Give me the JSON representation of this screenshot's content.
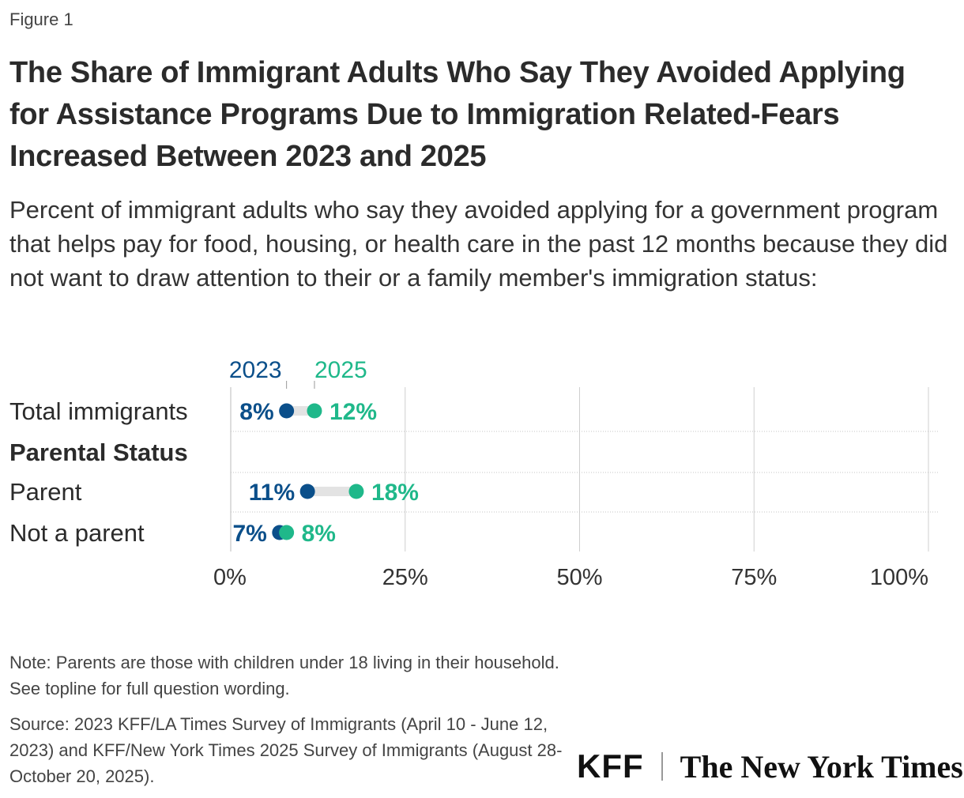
{
  "figure_label": "Figure 1",
  "title": "The Share of Immigrant Adults Who Say They Avoided Applying for Assistance Programs Due to Immigration Related-Fears Increased Between 2023 and 2025",
  "subtitle": "Percent of immigrant adults who say they avoided applying for a government program that helps pay for food, housing, or health care in the past 12 months because they did not want to draw attention to their or a family member's immigration status:",
  "note": "Note: Parents are those with children under 18 living in their household. See topline for full question wording.",
  "source": "Source: 2023 KFF/LA Times Survey of Immigrants (April 10 - June 12, 2023) and KFF/New York Times 2025 Survey of Immigrants (August 28-October 20, 2025).",
  "logos": {
    "kff": "KFF",
    "nyt": "The New York Times"
  },
  "colors": {
    "series_2023": "#0b4f8a",
    "series_2025": "#1fb88a",
    "connector": "#e3e3e3",
    "grid": "#cfcfcf"
  },
  "chart_data": {
    "type": "dot",
    "xlim": [
      0,
      100
    ],
    "xticks": [
      0,
      25,
      50,
      75,
      100
    ],
    "xtick_labels": [
      "0%",
      "25%",
      "50%",
      "75%",
      "100%"
    ],
    "legend_position": "top",
    "series": [
      {
        "name": "2023",
        "color": "#0b4f8a"
      },
      {
        "name": "2025",
        "color": "#1fb88a"
      }
    ],
    "rows": [
      {
        "label": "Total immigrants",
        "header": false,
        "v2023": 8,
        "v2025": 12,
        "label2023": "8%",
        "label2025": "12%"
      },
      {
        "label": "Parental Status",
        "header": true
      },
      {
        "label": "Parent",
        "header": false,
        "v2023": 11,
        "v2025": 18,
        "label2023": "11%",
        "label2025": "18%"
      },
      {
        "label": "Not a parent",
        "header": false,
        "v2023": 7,
        "v2025": 8,
        "label2023": "7%",
        "label2025": "8%"
      }
    ]
  }
}
